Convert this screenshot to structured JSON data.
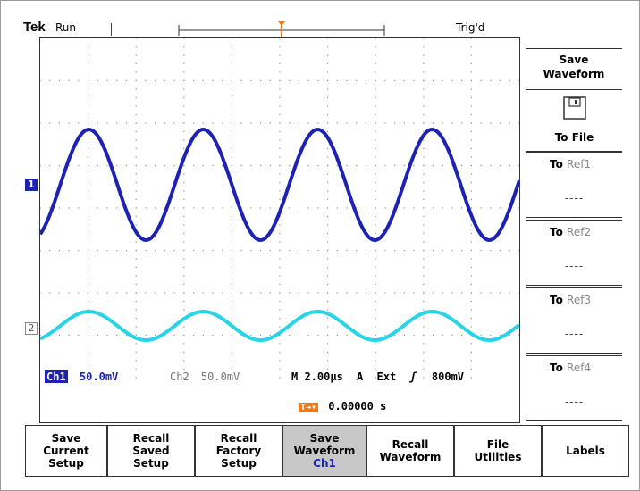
{
  "header": {
    "brand": "Tek",
    "status": "Run",
    "trigger_state": "Trig'd"
  },
  "markers": {
    "ch1": "1",
    "ch2": "2",
    "trigger_top": "T"
  },
  "readouts": {
    "ch1_label": "Ch1",
    "ch1_scale": "50.0mV",
    "ch2_label": "Ch2",
    "ch2_scale": "50.0mV",
    "timebase": "M 2.00µs",
    "acq": "A",
    "trig_source": "Ext",
    "trig_slope": "ʃ",
    "trig_level": "800mV",
    "trigger_position": "0.00000 s"
  },
  "side_menu": {
    "title": "Save\nWaveform",
    "to_file": "To File",
    "items": [
      {
        "to": "To",
        "ref": "Ref1",
        "value": "----"
      },
      {
        "to": "To",
        "ref": "Ref2",
        "value": "----"
      },
      {
        "to": "To",
        "ref": "Ref3",
        "value": "----"
      },
      {
        "to": "To",
        "ref": "Ref4",
        "value": "----"
      }
    ]
  },
  "bottom_menu": [
    {
      "label": "Save\nCurrent\nSetup"
    },
    {
      "label": "Recall\nSaved\nSetup"
    },
    {
      "label": "Recall\nFactory\nSetup"
    },
    {
      "label": "Save\nWaveform",
      "sub": "Ch1"
    },
    {
      "label": "Recall\nWaveform"
    },
    {
      "label": "File\nUtilities"
    },
    {
      "label": "Labels"
    }
  ],
  "colors": {
    "ch1": "#1e22b4",
    "ch2": "#28d4e6",
    "trigger": "#f07818"
  }
}
